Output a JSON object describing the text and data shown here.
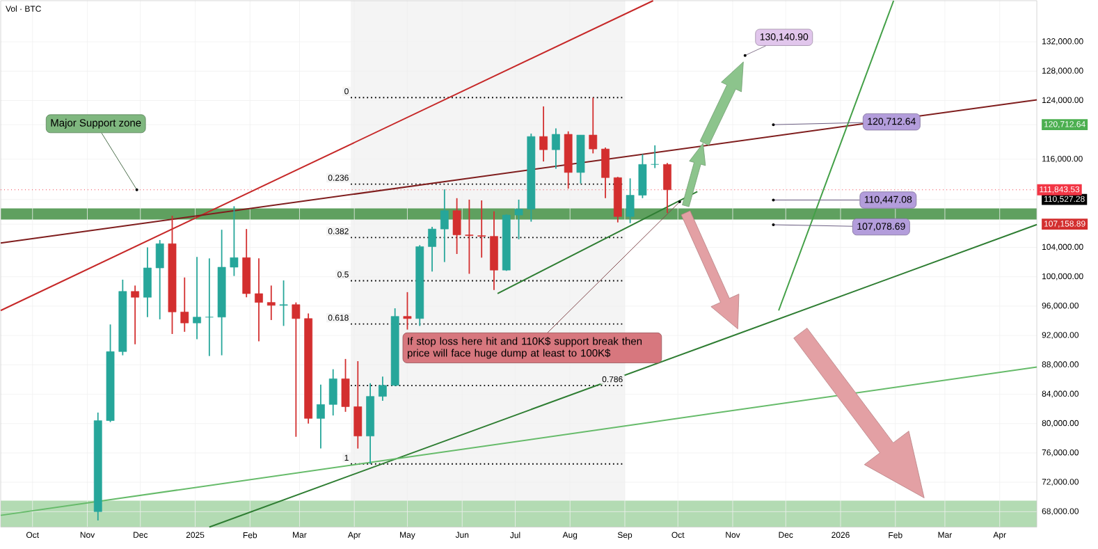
{
  "chart_data": {
    "type": "candlestick",
    "title": "Vol · BTC",
    "x": [
      "2024-11-07",
      "2024-11-14",
      "2024-11-21",
      "2024-11-28",
      "2024-12-05",
      "2024-12-12",
      "2024-12-19",
      "2024-12-26",
      "2025-01-02",
      "2025-01-09",
      "2025-01-16",
      "2025-01-23",
      "2025-01-30",
      "2025-02-06",
      "2025-02-13",
      "2025-02-20",
      "2025-02-27",
      "2025-03-06",
      "2025-03-13",
      "2025-03-20",
      "2025-03-27",
      "2025-04-03",
      "2025-04-10",
      "2025-04-17",
      "2025-04-24",
      "2025-05-01",
      "2025-05-08",
      "2025-05-15",
      "2025-05-22",
      "2025-05-29",
      "2025-06-05",
      "2025-06-12",
      "2025-06-19",
      "2025-06-26",
      "2025-07-03",
      "2025-07-10",
      "2025-07-17",
      "2025-07-24",
      "2025-07-31",
      "2025-08-07",
      "2025-08-14",
      "2025-08-21",
      "2025-08-28",
      "2025-09-04",
      "2025-09-11",
      "2025-09-18",
      "2025-09-25"
    ],
    "ohlc": [
      [
        68000,
        81500,
        66800,
        80400
      ],
      [
        80400,
        93500,
        80200,
        89800
      ],
      [
        89800,
        99600,
        89300,
        98000
      ],
      [
        98000,
        98800,
        90800,
        97200
      ],
      [
        97200,
        104000,
        94500,
        101200
      ],
      [
        101200,
        105000,
        94200,
        104500
      ],
      [
        104500,
        108300,
        92200,
        95200
      ],
      [
        95200,
        99900,
        92500,
        93700
      ],
      [
        93700,
        102700,
        91500,
        94500
      ],
      [
        94500,
        102500,
        89200,
        94500
      ],
      [
        94500,
        106400,
        89300,
        101300
      ],
      [
        101300,
        109600,
        100100,
        102600
      ],
      [
        102600,
        106500,
        97200,
        97700
      ],
      [
        97700,
        102500,
        91200,
        96500
      ],
      [
        96500,
        98800,
        94100,
        96100
      ],
      [
        96100,
        99500,
        93300,
        96200
      ],
      [
        96200,
        96500,
        78200,
        94300
      ],
      [
        94300,
        95000,
        80000,
        80700
      ],
      [
        80700,
        85300,
        76600,
        82600
      ],
      [
        82600,
        87400,
        81100,
        86100
      ],
      [
        86100,
        88800,
        81600,
        82300
      ],
      [
        82300,
        88500,
        76600,
        78300
      ],
      [
        78300,
        85500,
        74500,
        83700
      ],
      [
        83700,
        86400,
        83100,
        85200
      ],
      [
        85200,
        95700,
        85100,
        94600
      ],
      [
        94600,
        97900,
        92800,
        94300
      ],
      [
        94300,
        104300,
        93300,
        104100
      ],
      [
        104100,
        106800,
        100700,
        106500
      ],
      [
        106500,
        111900,
        102000,
        109000
      ],
      [
        109000,
        110700,
        103100,
        105700
      ],
      [
        105700,
        110500,
        100400,
        105600
      ],
      [
        105600,
        110400,
        102600,
        105500
      ],
      [
        105500,
        108900,
        98200,
        100900
      ],
      [
        100900,
        108500,
        100800,
        108400
      ],
      [
        108400,
        110500,
        105100,
        109200
      ],
      [
        109200,
        119500,
        107500,
        119100
      ],
      [
        119100,
        123200,
        115700,
        117300
      ],
      [
        117300,
        120200,
        114700,
        119400
      ],
      [
        119400,
        119800,
        112000,
        114200
      ],
      [
        114200,
        119300,
        112700,
        119300
      ],
      [
        119300,
        124400,
        116800,
        117400
      ],
      [
        117400,
        117600,
        110700,
        113500
      ],
      [
        113500,
        113600,
        107400,
        108200
      ],
      [
        108200,
        113400,
        107300,
        111100
      ],
      [
        111100,
        116700,
        110700,
        115300
      ],
      [
        115300,
        117900,
        114800,
        115300
      ],
      [
        115300,
        115500,
        108700,
        111843.53
      ]
    ],
    "series": [
      {
        "type": "line",
        "color": "#c62828",
        "x": [
          "2024-09-13",
          "2025-09-17"
        ],
        "values": [
          95400,
          137600
        ]
      },
      {
        "type": "line",
        "color": "#7f1d1d",
        "x": [
          "2024-09-13",
          "2026-04-22"
        ],
        "values": [
          104600,
          124100
        ]
      },
      {
        "type": "line",
        "color": "#2e7d32",
        "x": [
          "2025-01-09",
          "2026-04-22"
        ],
        "values": [
          65900,
          107100
        ]
      },
      {
        "type": "line",
        "color": "#2e7d32",
        "x": [
          "2025-06-21",
          "2025-10-12"
        ],
        "values": [
          97700,
          111600
        ]
      },
      {
        "type": "line",
        "color": "#66bb6a",
        "x": [
          "2024-09-13",
          "2026-04-22"
        ],
        "values": [
          67500,
          87700
        ]
      },
      {
        "type": "line",
        "color": "#43a047",
        "x": [
          "2025-11-27",
          "2026-01-31"
        ],
        "values": [
          95400,
          137600
        ]
      }
    ],
    "ref_lines": [
      {
        "axis": "y",
        "value": 111843.53,
        "label": "111,843.53",
        "color": "#f23645",
        "line_style": "dotted"
      },
      {
        "axis": "y",
        "value": 124400,
        "color": "#000000",
        "line_style": "dotted"
      },
      {
        "axis": "y",
        "value": 112620,
        "color": "#000000",
        "line_style": "dotted"
      },
      {
        "axis": "y",
        "value": 105340,
        "color": "#000000",
        "line_style": "dotted"
      },
      {
        "axis": "y",
        "value": 99450,
        "color": "#000000",
        "line_style": "dotted"
      },
      {
        "axis": "y",
        "value": 93560,
        "color": "#000000",
        "line_style": "dotted"
      },
      {
        "axis": "y",
        "value": 85180,
        "color": "#000000",
        "line_style": "dotted"
      },
      {
        "axis": "y",
        "value": 74500,
        "color": "#000000",
        "line_style": "dotted"
      }
    ],
    "bands": [
      {
        "axis": "x",
        "from": "2025-03-30",
        "to": "2025-09-01",
        "color": "#f4f4f4"
      },
      {
        "axis": "y",
        "from": 107800,
        "to": 109300,
        "color": "#5fa05f"
      },
      {
        "axis": "y",
        "from": 65900,
        "to": 69500,
        "color": "#b3dbb3"
      }
    ],
    "annotations": [
      {
        "text": "Major Support zone",
        "x": "2024-11-29",
        "y": 111843.53
      },
      {
        "text": "If stop loss here hit and 110K$ support break then price will face huge dump at least to 100K$",
        "x": "2025-10-02",
        "y": 110200
      },
      {
        "text": "130,140.90",
        "x": "2025-11-08",
        "y": 130140.9
      },
      {
        "text": "120,712.64",
        "x": "2025-11-24",
        "y": 120712.64
      },
      {
        "text": "110,447.08",
        "x": "2025-11-24",
        "y": 110447.08
      },
      {
        "text": "107,078.69",
        "x": "2025-11-24",
        "y": 107078.69
      },
      {
        "text": "0",
        "x": "2025-03-30",
        "y": 124400
      },
      {
        "text": "0.236",
        "x": "2025-03-30",
        "y": 112620
      },
      {
        "text": "0.382",
        "x": "2025-03-30",
        "y": 105340
      },
      {
        "text": "0.5",
        "x": "2025-03-30",
        "y": 99450
      },
      {
        "text": "0.618",
        "x": "2025-03-30",
        "y": 93560
      },
      {
        "text": "0.786",
        "x": "2025-09-01",
        "y": 85180
      },
      {
        "text": "1",
        "x": "2025-03-30",
        "y": 74500
      }
    ],
    "xlim": [
      "2024-09-13",
      "2026-04-22"
    ],
    "ylim": [
      65900,
      137600
    ],
    "xticks": [
      {
        "value": "2024-10-01",
        "label": "Oct"
      },
      {
        "value": "2024-11-01",
        "label": "Nov"
      },
      {
        "value": "2024-12-01",
        "label": "Dec"
      },
      {
        "value": "2025-01-01",
        "label": "2025"
      },
      {
        "value": "2025-02-01",
        "label": "Feb"
      },
      {
        "value": "2025-03-01",
        "label": "Mar"
      },
      {
        "value": "2025-04-01",
        "label": "Apr"
      },
      {
        "value": "2025-05-01",
        "label": "May"
      },
      {
        "value": "2025-06-01",
        "label": "Jun"
      },
      {
        "value": "2025-07-01",
        "label": "Jul"
      },
      {
        "value": "2025-08-01",
        "label": "Aug"
      },
      {
        "value": "2025-09-01",
        "label": "Sep"
      },
      {
        "value": "2025-10-01",
        "label": "Oct"
      },
      {
        "value": "2025-11-01",
        "label": "Nov"
      },
      {
        "value": "2025-12-01",
        "label": "Dec"
      },
      {
        "value": "2026-01-01",
        "label": "2026"
      },
      {
        "value": "2026-02-01",
        "label": "Feb"
      },
      {
        "value": "2026-03-01",
        "label": "Mar"
      },
      {
        "value": "2026-04-01",
        "label": "Apr"
      }
    ],
    "yticks": [
      {
        "value": 68000,
        "label": "68,000.00"
      },
      {
        "value": 72000,
        "label": "72,000.00"
      },
      {
        "value": 76000,
        "label": "76,000.00"
      },
      {
        "value": 80000,
        "label": "80,000.00"
      },
      {
        "value": 84000,
        "label": "84,000.00"
      },
      {
        "value": 88000,
        "label": "88,000.00"
      },
      {
        "value": 92000,
        "label": "92,000.00"
      },
      {
        "value": 96000,
        "label": "96,000.00"
      },
      {
        "value": 100000,
        "label": "100,000.00"
      },
      {
        "value": 104000,
        "label": "104,000.00"
      },
      {
        "value": 107158.89,
        "label": "107,158.89"
      },
      {
        "value": 110527.28,
        "label": "110,527.28"
      },
      {
        "value": 116000,
        "label": "116,000.00"
      },
      {
        "value": 120712.64,
        "label": "120,712.64"
      },
      {
        "value": 124000,
        "label": "124,000.00"
      },
      {
        "value": 128000,
        "label": "128,000.00"
      },
      {
        "value": 132000,
        "label": "132,000.00"
      }
    ],
    "grid": true
  }
}
